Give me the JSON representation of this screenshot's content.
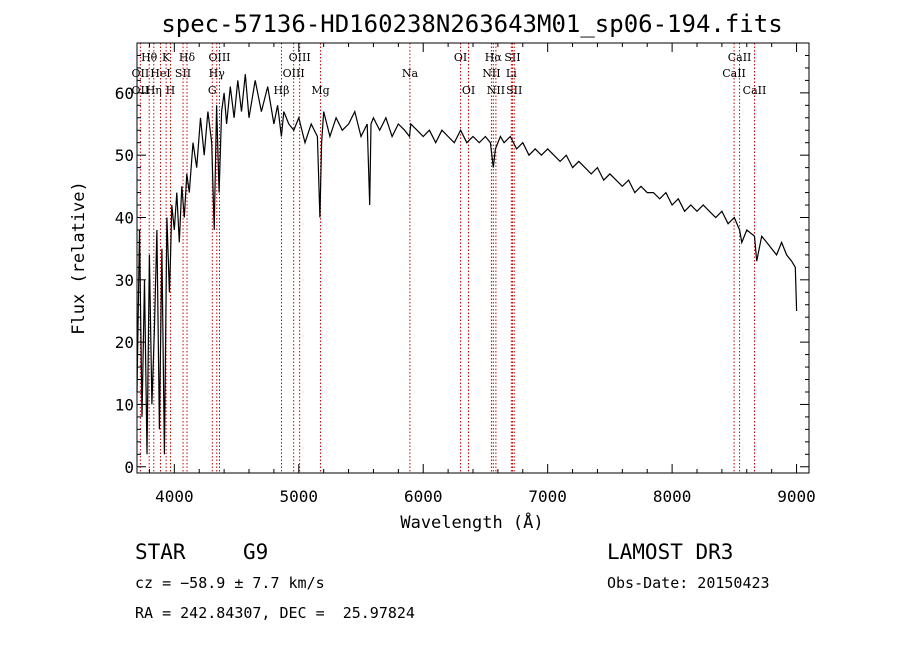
{
  "chart_data": {
    "type": "line",
    "title": "spec-57136-HD160238N263643M01_sp06-194.fits",
    "xlabel": "Wavelength (Å)",
    "ylabel": "Flux (relative)",
    "xlim": [
      3700,
      9100
    ],
    "ylim": [
      -1,
      68
    ],
    "xticks": [
      4000,
      5000,
      6000,
      7000,
      8000,
      9000
    ],
    "yticks": [
      0,
      10,
      20,
      30,
      40,
      50,
      60
    ],
    "series": [
      {
        "name": "spectrum",
        "x": [
          3700,
          3720,
          3740,
          3760,
          3780,
          3800,
          3820,
          3840,
          3860,
          3880,
          3900,
          3920,
          3940,
          3960,
          3970,
          3980,
          4000,
          4020,
          4040,
          4060,
          4080,
          4100,
          4120,
          4150,
          4180,
          4210,
          4240,
          4270,
          4300,
          4320,
          4340,
          4360,
          4380,
          4400,
          4420,
          4450,
          4480,
          4510,
          4540,
          4570,
          4600,
          4650,
          4700,
          4750,
          4800,
          4830,
          4860,
          4880,
          4920,
          4960,
          5000,
          5050,
          5100,
          5150,
          5170,
          5183,
          5200,
          5250,
          5300,
          5350,
          5400,
          5450,
          5500,
          5550,
          5570,
          5580,
          5600,
          5650,
          5700,
          5750,
          5800,
          5850,
          5890,
          5900,
          5950,
          6000,
          6050,
          6100,
          6150,
          6200,
          6250,
          6300,
          6350,
          6400,
          6450,
          6500,
          6540,
          6563,
          6580,
          6620,
          6650,
          6700,
          6750,
          6800,
          6850,
          6900,
          6950,
          7000,
          7050,
          7100,
          7150,
          7200,
          7250,
          7300,
          7350,
          7400,
          7450,
          7500,
          7550,
          7600,
          7650,
          7700,
          7750,
          7800,
          7850,
          7900,
          7950,
          8000,
          8050,
          8100,
          8150,
          8200,
          8250,
          8300,
          8350,
          8400,
          8450,
          8500,
          8542,
          8560,
          8600,
          8662,
          8680,
          8720,
          8760,
          8800,
          8840,
          8880,
          8920,
          8960,
          8990,
          9000
        ],
        "values": [
          12,
          38,
          8,
          30,
          2,
          34,
          10,
          22,
          38,
          6,
          35,
          2,
          40,
          28,
          34,
          42,
          38,
          44,
          36,
          45,
          40,
          47,
          44,
          52,
          48,
          56,
          50,
          57,
          52,
          38,
          58,
          44,
          57,
          60,
          55,
          61,
          56,
          62,
          57,
          63,
          56,
          62,
          57,
          61,
          55,
          58,
          53,
          57,
          55,
          54,
          56,
          52,
          55,
          53,
          40,
          52,
          57,
          53,
          56,
          54,
          55,
          57,
          53,
          55,
          42,
          55,
          56,
          54,
          56,
          53,
          55,
          54,
          53,
          55,
          54,
          53,
          54,
          52,
          54,
          53,
          52,
          54,
          52,
          53,
          52,
          53,
          52,
          48,
          51,
          53,
          52,
          53,
          51,
          52,
          50,
          51,
          50,
          51,
          50,
          49,
          50,
          48,
          49,
          48,
          47,
          48,
          46,
          47,
          46,
          45,
          46,
          44,
          45,
          44,
          44,
          43,
          44,
          42,
          43,
          41,
          42,
          41,
          42,
          41,
          40,
          41,
          39,
          40,
          38,
          36,
          38,
          37,
          33,
          37,
          36,
          35,
          34,
          36,
          34,
          33,
          32,
          25
        ]
      }
    ],
    "line_markers": [
      {
        "label": "Hθ",
        "x": 3798,
        "row": 0
      },
      {
        "label": "K",
        "x": 3934,
        "row": 0
      },
      {
        "label": "Hδ",
        "x": 4102,
        "row": 0
      },
      {
        "label": "OII",
        "x": 3727,
        "row": 1
      },
      {
        "label": "HeI",
        "x": 3889,
        "row": 1
      },
      {
        "label": "SII",
        "x": 4070,
        "row": 1
      },
      {
        "label": "OII",
        "x": 3727,
        "row": 2
      },
      {
        "label": "Hη",
        "x": 3835,
        "row": 2
      },
      {
        "label": "H",
        "x": 3969,
        "row": 2
      },
      {
        "label": "OIII",
        "x": 4363,
        "row": 0
      },
      {
        "label": "Hγ",
        "x": 4341,
        "row": 1
      },
      {
        "label": "G",
        "x": 4305,
        "row": 2
      },
      {
        "label": "OIII",
        "x": 5007,
        "row": 0
      },
      {
        "label": "OIII",
        "x": 4959,
        "row": 1
      },
      {
        "label": "Hβ",
        "x": 4861,
        "row": 2
      },
      {
        "label": "Mg",
        "x": 5175,
        "row": 2
      },
      {
        "label": "Na",
        "x": 5893,
        "row": 1
      },
      {
        "label": "OI",
        "x": 6300,
        "row": 0
      },
      {
        "label": "OI",
        "x": 6364,
        "row": 2
      },
      {
        "label": "Hα",
        "x": 6563,
        "row": 0
      },
      {
        "label": "SII",
        "x": 6717,
        "row": 0
      },
      {
        "label": "NII",
        "x": 6548,
        "row": 1
      },
      {
        "label": "Li",
        "x": 6708,
        "row": 1
      },
      {
        "label": "NII",
        "x": 6584,
        "row": 2
      },
      {
        "label": "SII",
        "x": 6731,
        "row": 2
      },
      {
        "label": "CaII",
        "x": 8542,
        "row": 0
      },
      {
        "label": "CaII",
        "x": 8498,
        "row": 1
      },
      {
        "label": "CaII",
        "x": 8662,
        "row": 2
      }
    ],
    "marker_color": "#cc0000"
  },
  "info": {
    "object_type": "STAR",
    "subclass": "G9",
    "survey": "LAMOST DR3",
    "redshift": "cz = −58.9 ± 7.7 km/s",
    "obs_date": "Obs-Date: 20150423",
    "coords": "RA = 242.84307, DEC =  25.97824"
  }
}
